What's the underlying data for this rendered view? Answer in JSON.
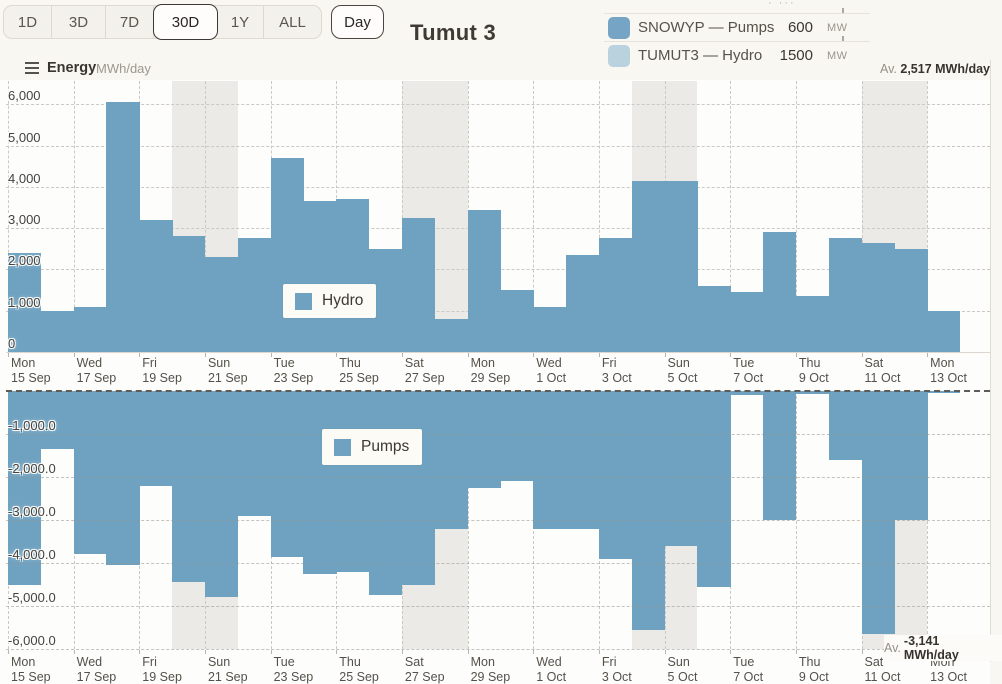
{
  "header": {
    "range_buttons": [
      {
        "label": "1D",
        "selected": false
      },
      {
        "label": "3D",
        "selected": false
      },
      {
        "label": "7D",
        "selected": false
      },
      {
        "label": "30D",
        "selected": true
      },
      {
        "label": "1Y",
        "selected": false
      },
      {
        "label": "ALL",
        "selected": false
      }
    ],
    "granularity_label": "Day",
    "title": "Tumut 3",
    "overflow_dots": "· ···",
    "legend": [
      {
        "series": "SNOWYP — Pumps",
        "capacity": "600",
        "unit": "MW",
        "swatch_color": "#76a4c4"
      },
      {
        "series": "TUMUT3 — Hydro",
        "capacity": "1500",
        "unit": "MW",
        "swatch_color": "#b9d2dd"
      }
    ]
  },
  "metric_header": {
    "label": "Energy",
    "unit": "MWh/day",
    "average_prefix": "Av.",
    "average_value": "2,517 MWh/day"
  },
  "bottom_average": {
    "prefix": "Av.",
    "value": "-3,141 MWh/day"
  },
  "chart_data": {
    "type": "bar",
    "x": [
      "Mon 15 Sep",
      "Tue 16 Sep",
      "Wed 17 Sep",
      "Thu 18 Sep",
      "Fri 19 Sep",
      "Sat 20 Sep",
      "Sun 21 Sep",
      "Mon 22 Sep",
      "Tue 23 Sep",
      "Wed 24 Sep",
      "Thu 25 Sep",
      "Fri 26 Sep",
      "Sat 27 Sep",
      "Sun 28 Sep",
      "Mon 29 Sep",
      "Tue 30 Sep",
      "Wed 1 Oct",
      "Thu 2 Oct",
      "Fri 3 Oct",
      "Sat 4 Oct",
      "Sun 5 Oct",
      "Mon 6 Oct",
      "Tue 7 Oct",
      "Wed 8 Oct",
      "Thu 9 Oct",
      "Fri 10 Oct",
      "Sat 11 Oct",
      "Sun 12 Oct",
      "Mon 13 Oct"
    ],
    "series": [
      {
        "name": "Hydro",
        "panel": "top",
        "color": "#6fa2c1",
        "values": [
          2400,
          1000,
          1100,
          6050,
          3200,
          2800,
          2300,
          2750,
          4700,
          3650,
          3700,
          2500,
          3250,
          800,
          3450,
          1500,
          1100,
          2350,
          2750,
          4150,
          4150,
          1600,
          1450,
          2900,
          1350,
          2750,
          2650,
          2500,
          1000
        ]
      },
      {
        "name": "Pumps",
        "panel": "bottom",
        "color": "#6fa2c1",
        "values": [
          -4500,
          -1350,
          -3800,
          -4050,
          -2200,
          -4450,
          -4800,
          -2900,
          -3850,
          -4250,
          -4200,
          -4750,
          -4500,
          -3200,
          -2250,
          -2100,
          -3200,
          -3200,
          -3900,
          -5550,
          -3600,
          -4550,
          -100,
          -3000,
          -70,
          -1600,
          -5650,
          -3000,
          -50
        ]
      }
    ],
    "y_axis_top": {
      "ylabel": "Energy MWh/day",
      "range": [
        0,
        6560
      ],
      "grid": true,
      "ticks": [
        {
          "value": 0,
          "label": "0"
        },
        {
          "value": 1000,
          "label": "1,000"
        },
        {
          "value": 2000,
          "label": "2,000"
        },
        {
          "value": 3000,
          "label": "3,000"
        },
        {
          "value": 4000,
          "label": "4,000"
        },
        {
          "value": 5000,
          "label": "5,000"
        },
        {
          "value": 6000,
          "label": "6,000"
        }
      ]
    },
    "y_axis_bottom": {
      "ylabel": "Energy MWh/day",
      "range": [
        -6000,
        0
      ],
      "grid": true,
      "ticks": [
        {
          "value": -1000,
          "label": "-1,000.0"
        },
        {
          "value": -2000,
          "label": "-2,000.0"
        },
        {
          "value": -3000,
          "label": "-3,000.0"
        },
        {
          "value": -4000,
          "label": "-4,000.0"
        },
        {
          "value": -5000,
          "label": "-5,000.0"
        },
        {
          "value": -6000,
          "label": "-6,000.0"
        }
      ]
    },
    "x_ticks": [
      {
        "index": 0,
        "day": "Mon",
        "date": "15 Sep"
      },
      {
        "index": 2,
        "day": "Wed",
        "date": "17 Sep"
      },
      {
        "index": 4,
        "day": "Fri",
        "date": "19 Sep"
      },
      {
        "index": 6,
        "day": "Sun",
        "date": "21 Sep"
      },
      {
        "index": 8,
        "day": "Tue",
        "date": "23 Sep"
      },
      {
        "index": 10,
        "day": "Thu",
        "date": "25 Sep"
      },
      {
        "index": 12,
        "day": "Sat",
        "date": "27 Sep"
      },
      {
        "index": 14,
        "day": "Mon",
        "date": "29 Sep"
      },
      {
        "index": 16,
        "day": "Wed",
        "date": "1 Oct"
      },
      {
        "index": 18,
        "day": "Fri",
        "date": "3 Oct"
      },
      {
        "index": 20,
        "day": "Sun",
        "date": "5 Oct"
      },
      {
        "index": 22,
        "day": "Tue",
        "date": "7 Oct"
      },
      {
        "index": 24,
        "day": "Thu",
        "date": "9 Oct"
      },
      {
        "index": 26,
        "day": "Sat",
        "date": "11 Oct"
      },
      {
        "index": 28,
        "day": "Mon",
        "date": "13 Oct"
      }
    ],
    "weekend_start_indices": [
      5,
      12,
      19,
      26
    ],
    "weekend_band_color": "#ebeae6",
    "in_chart_labels": [
      {
        "text": "Hydro",
        "panel": "top"
      },
      {
        "text": "Pumps",
        "panel": "bottom"
      }
    ],
    "averages": {
      "top": "2,517 MWh/day",
      "bottom": "-3,141 MWh/day"
    }
  }
}
